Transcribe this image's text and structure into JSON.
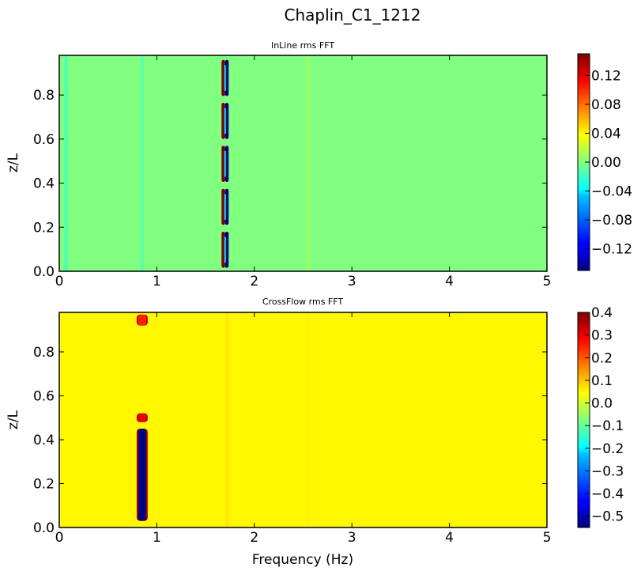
{
  "figure": {
    "title": "Chaplin_C1_1212",
    "xlabel": "Frequency (Hz)"
  },
  "chart_data": [
    {
      "type": "heatmap",
      "title": "InLine rms FFT",
      "xlabel": "",
      "ylabel": "z/L",
      "xlim": [
        0,
        5
      ],
      "ylim": [
        0,
        0.98
      ],
      "xticks": [
        "0",
        "1",
        "2",
        "3",
        "4",
        "5"
      ],
      "yticks": [
        "0.0",
        "0.2",
        "0.4",
        "0.6",
        "0.8"
      ],
      "colorbar": {
        "range": [
          -0.15,
          0.15
        ],
        "ticks": [
          "0.12",
          "0.08",
          "0.04",
          "0.00",
          "−0.04",
          "−0.08",
          "−0.12"
        ],
        "tick_values": [
          0.12,
          0.08,
          0.04,
          0.0,
          -0.04,
          -0.08,
          -0.12
        ],
        "colormap": "jet"
      },
      "background_value": 0.0,
      "features": [
        {
          "freq": 1.7,
          "z": [
            0.0,
            0.195,
            0.39,
            0.585,
            0.78,
            0.975
          ],
          "amplitude": 0.15,
          "description": "alternating positive/negative lobes at ~1.7 Hz"
        },
        {
          "freq": 0.07,
          "z_range": [
            0.0,
            0.98
          ],
          "amplitude": -0.03
        },
        {
          "freq": 0.85,
          "z_range": [
            0.0,
            0.98
          ],
          "amplitude": -0.02
        },
        {
          "freq": 2.55,
          "z_range": [
            0.0,
            0.98
          ],
          "amplitude": 0.015
        }
      ]
    },
    {
      "type": "heatmap",
      "title": "CrossFlow rms FFT",
      "xlabel": "Frequency (Hz)",
      "ylabel": "z/L",
      "xlim": [
        0,
        5
      ],
      "ylim": [
        0,
        0.98
      ],
      "xticks": [
        "0",
        "1",
        "2",
        "3",
        "4",
        "5"
      ],
      "yticks": [
        "0.0",
        "0.2",
        "0.4",
        "0.6",
        "0.8"
      ],
      "colorbar": {
        "range": [
          -0.55,
          0.4
        ],
        "ticks": [
          "0.4",
          "0.3",
          "0.2",
          "0.1",
          "0.0",
          "−0.1",
          "−0.2",
          "−0.3",
          "−0.4",
          "−0.5"
        ],
        "tick_values": [
          0.4,
          0.3,
          0.2,
          0.1,
          0.0,
          -0.1,
          -0.2,
          -0.3,
          -0.4,
          -0.5
        ],
        "colormap": "jet"
      },
      "background_value": 0.05,
      "features": [
        {
          "freq": 0.85,
          "z_range": [
            0.03,
            0.45
          ],
          "amplitude": -0.55,
          "description": "strong negative lobe at ~0.85 Hz near bottom with red edge"
        },
        {
          "freq": 0.85,
          "z_range": [
            0.48,
            0.52
          ],
          "amplitude": 0.3
        },
        {
          "freq": 0.85,
          "z_range": [
            0.92,
            0.97
          ],
          "amplitude": 0.25
        },
        {
          "freq": 1.72,
          "z_range": [
            0.0,
            0.98
          ],
          "amplitude": 0.08
        },
        {
          "freq": 2.55,
          "z_range": [
            0.0,
            0.98
          ],
          "amplitude": 0.06
        }
      ]
    }
  ]
}
